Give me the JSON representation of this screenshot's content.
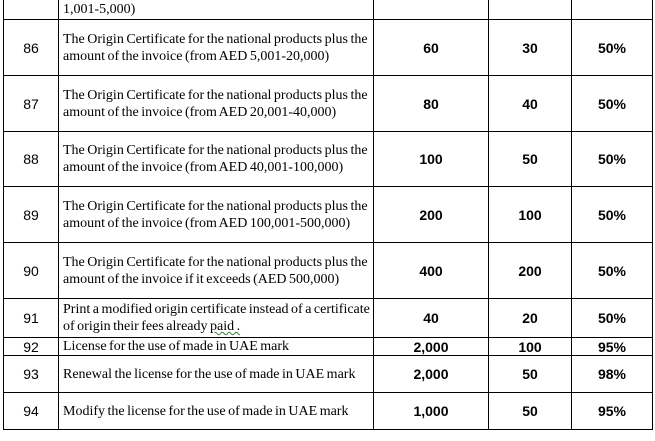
{
  "top_row": {
    "desc": "1,001-5,000)"
  },
  "rows": [
    {
      "num": "86",
      "desc": "The Origin Certificate for the national products plus the amount of the invoice (from AED 5,001-20,000)",
      "fee": "60",
      "second": "30",
      "pct": "50%"
    },
    {
      "num": "87",
      "desc": "The Origin Certificate for the national products plus the amount of the invoice (from AED 20,001-40,000)",
      "fee": "80",
      "second": "40",
      "pct": "50%"
    },
    {
      "num": "88",
      "desc": "The Origin Certificate for the national products plus the amount of the invoice (from AED 40,001-100,000)",
      "fee": "100",
      "second": "50",
      "pct": "50%"
    },
    {
      "num": "89",
      "desc": "The Origin Certificate for the national products plus the amount of the invoice (from AED 100,001-500,000)",
      "fee": "200",
      "second": "100",
      "pct": "50%"
    },
    {
      "num": "90",
      "desc": "The Origin Certificate for the national products plus the amount of the invoice if it exceeds (AED 500,000)",
      "fee": "400",
      "second": "200",
      "pct": "50%"
    },
    {
      "num": "91",
      "desc_main": "Print a modified origin certificate instead of a certificate of origin their fees already",
      "desc_underlined": "paid .",
      "fee": "40",
      "second": "20",
      "pct": "50%"
    },
    {
      "num": "92",
      "desc": "License for the use of made in UAE mark",
      "fee": "2,000",
      "second": "100",
      "pct": "95%"
    },
    {
      "num": "93",
      "desc": "Renewal the license for the use of made in UAE mark",
      "fee": "2,000",
      "second": "50",
      "pct": "98%"
    },
    {
      "num": "94",
      "desc": "Modify the license for the use of made in UAE mark",
      "fee": "1,000",
      "second": "50",
      "pct": "95%"
    }
  ]
}
